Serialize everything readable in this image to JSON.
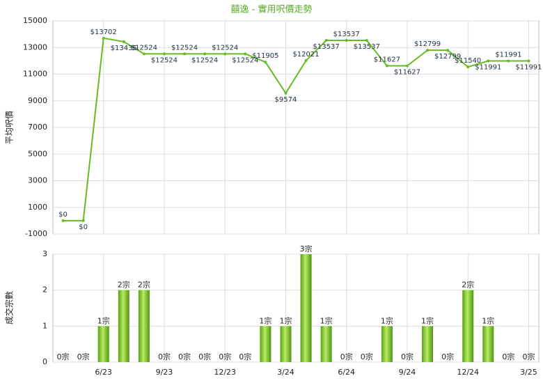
{
  "chart_data": [
    {
      "type": "line",
      "title": "囍逸 - 實用呎價走勢",
      "y_label": "平均呎價",
      "color": "#66bb22",
      "values": [
        0,
        0,
        13702,
        13435,
        12524,
        12524,
        12524,
        12524,
        12524,
        12524,
        11905,
        9574,
        12021,
        13537,
        13537,
        13537,
        11627,
        11627,
        12799,
        12799,
        11540,
        11991,
        11991,
        11991
      ],
      "value_labels": [
        "$0",
        "$0",
        "$13702",
        "$13435",
        "$12524",
        "$12524",
        "$12524",
        "$12524",
        "$12524",
        "$12524",
        "$11905",
        "$9574",
        "$12021",
        "$13537",
        "$13537",
        "$13537",
        "$11627",
        "$11627",
        "$12799",
        "$12799",
        "$11540",
        "$11991",
        "$11991",
        "$11991"
      ],
      "ylim": [
        -1000,
        15000
      ],
      "yticks": [
        -1000,
        1000,
        3000,
        5000,
        7000,
        9000,
        11000,
        13000,
        15000
      ],
      "grid": true
    },
    {
      "type": "bar",
      "y_label": "成交宗數",
      "color": "#77c030",
      "categories": [
        null,
        null,
        "6/23",
        null,
        null,
        "9/23",
        null,
        null,
        "12/23",
        null,
        null,
        "3/24",
        null,
        null,
        "6/24",
        null,
        null,
        "9/24",
        null,
        null,
        "12/24",
        null,
        null,
        "3/25"
      ],
      "values": [
        0,
        0,
        1,
        2,
        2,
        0,
        0,
        0,
        0,
        0,
        1,
        1,
        3,
        1,
        0,
        0,
        1,
        0,
        1,
        0,
        2,
        1,
        0,
        0
      ],
      "value_labels": [
        "0宗",
        "0宗",
        "1宗",
        "2宗",
        "2宗",
        "0宗",
        "0宗",
        "0宗",
        "0宗",
        "0宗",
        "1宗",
        "1宗",
        "3宗",
        "1宗",
        "0宗",
        "0宗",
        "1宗",
        "0宗",
        "1宗",
        "0宗",
        "2宗",
        "1宗",
        "0宗",
        "0宗"
      ],
      "ylim": [
        0,
        3
      ],
      "yticks": [
        0,
        1,
        2,
        3
      ],
      "grid": true
    }
  ]
}
